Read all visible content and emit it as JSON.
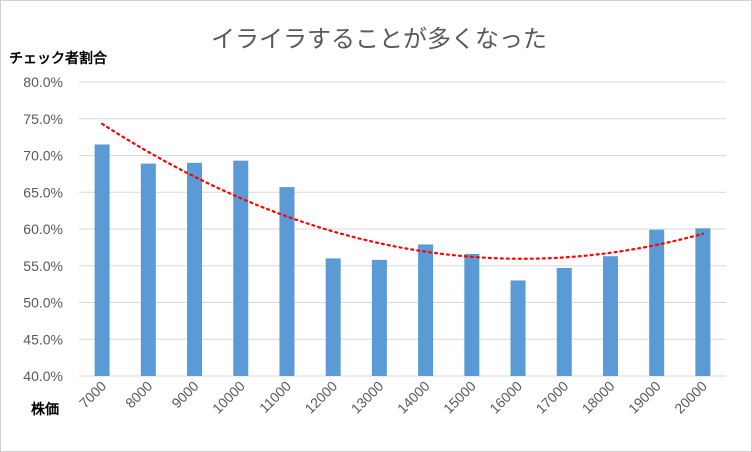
{
  "chart_data": {
    "type": "bar",
    "title": "イライラすることが多くなった",
    "ylabel": "チェック者割合",
    "xlabel": "株価",
    "categories": [
      "7000",
      "8000",
      "9000",
      "10000",
      "11000",
      "12000",
      "13000",
      "14000",
      "15000",
      "16000",
      "17000",
      "18000",
      "19000",
      "20000"
    ],
    "values": [
      71.5,
      68.9,
      69.0,
      69.3,
      65.7,
      56.0,
      55.8,
      57.9,
      56.6,
      53.0,
      54.7,
      56.3,
      59.9,
      60.1
    ],
    "yticks": [
      "40.0%",
      "45.0%",
      "50.0%",
      "55.0%",
      "60.0%",
      "65.0%",
      "70.0%",
      "75.0%",
      "80.0%"
    ],
    "ylim": [
      40,
      80
    ],
    "grid": true,
    "bar_color": "#5b9bd5",
    "trendline": {
      "type": "polynomial",
      "style": "dotted",
      "color": "#ff0000"
    }
  }
}
